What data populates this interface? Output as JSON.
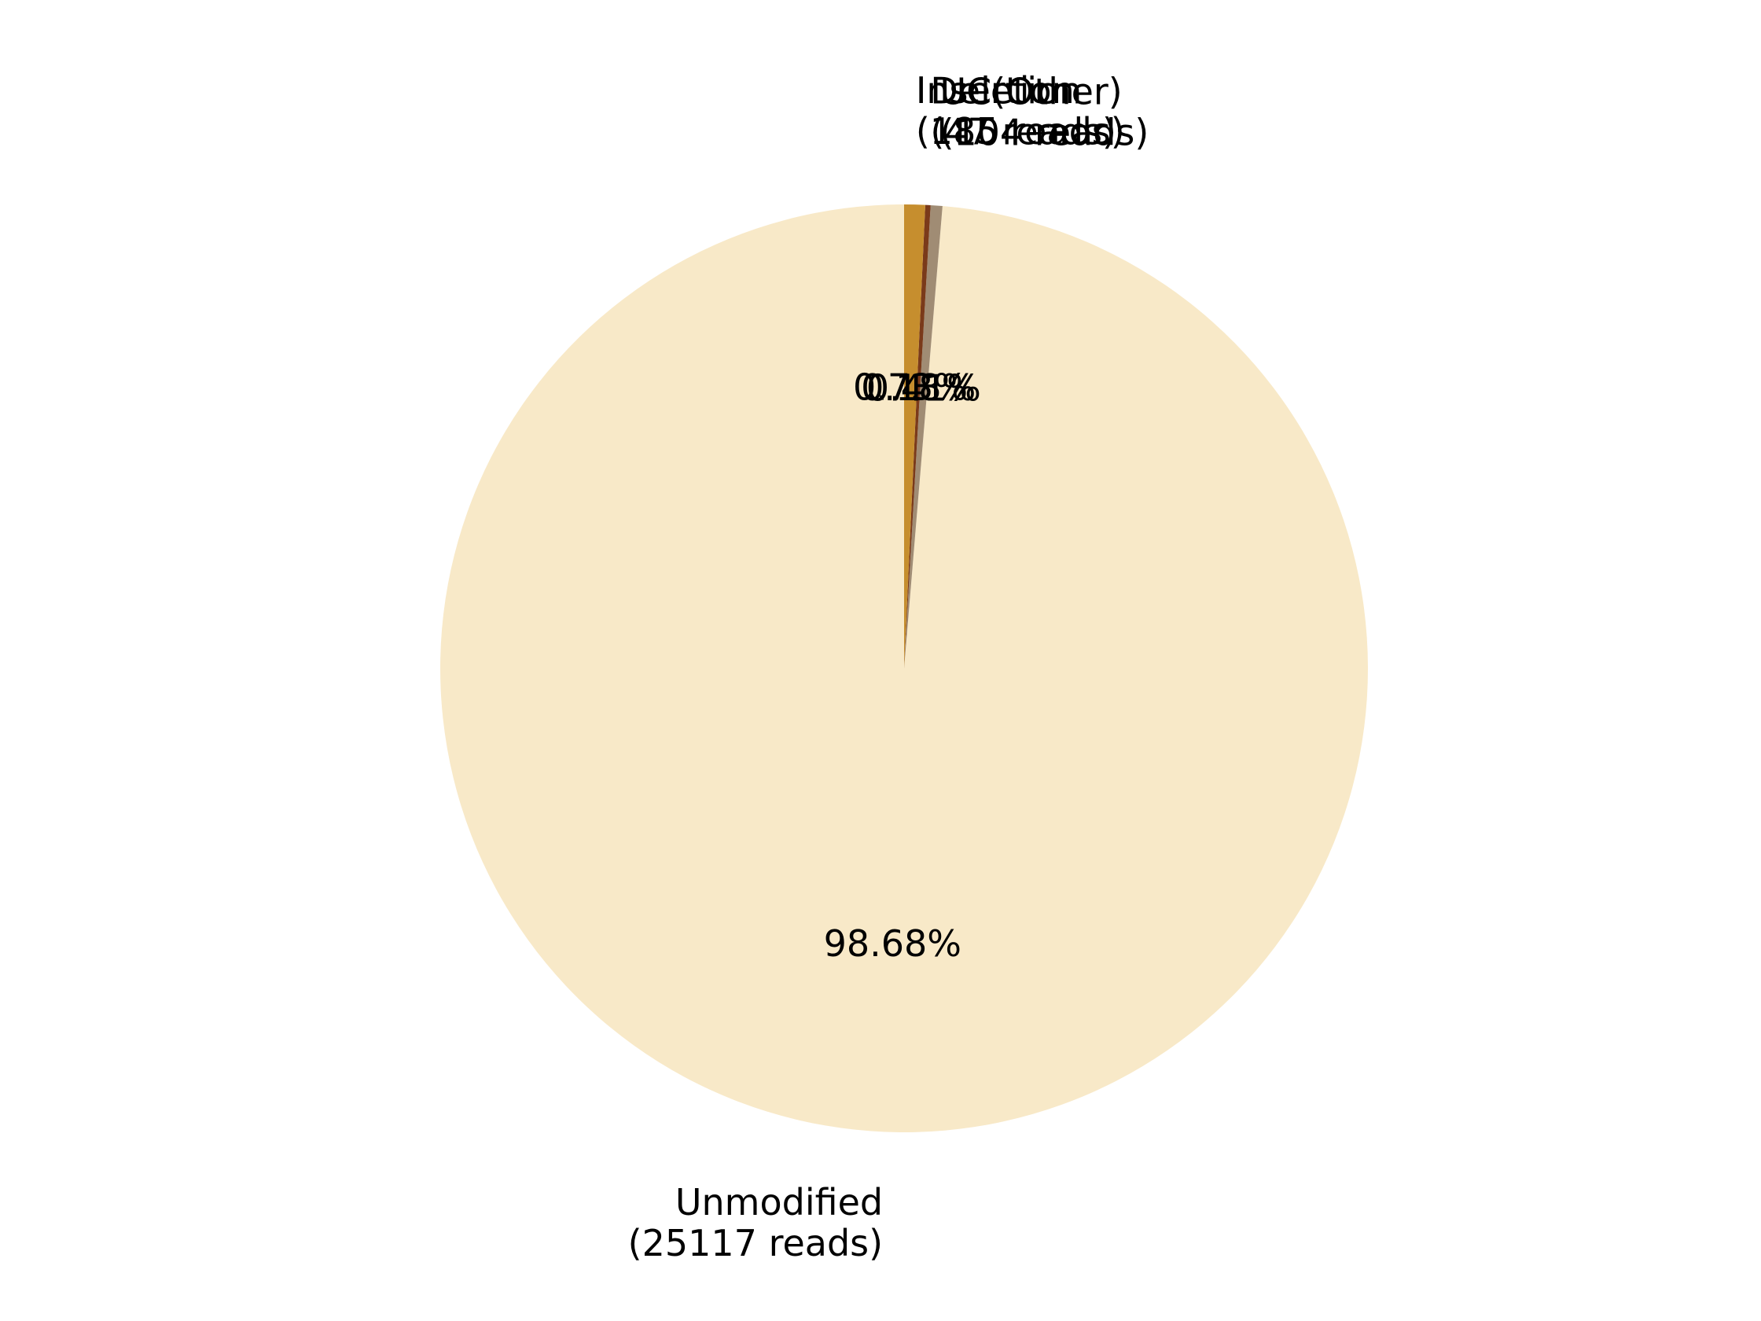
{
  "chart_data": {
    "type": "pie",
    "start_angle_deg": 90,
    "direction": "counterclockwise",
    "slices": [
      {
        "name": "Unmodified",
        "reads": 25117,
        "reads_label": "(25117 reads)",
        "percent_label": "98.68%",
        "color": "#F8E9C8"
      },
      {
        "name": "UC(Other)",
        "reads": 104,
        "reads_label": "(104 reads)",
        "percent_label": "0.41%",
        "color": "#A08C74"
      },
      {
        "name": "Deletion",
        "reads": 47,
        "reads_label": "(47 reads)",
        "percent_label": "0.18%",
        "color": "#7A3A1A"
      },
      {
        "name": "Insertion",
        "reads": 185,
        "reads_label": "(185 reads)",
        "percent_label": "0.73%",
        "color": "#C68E2E"
      }
    ]
  }
}
